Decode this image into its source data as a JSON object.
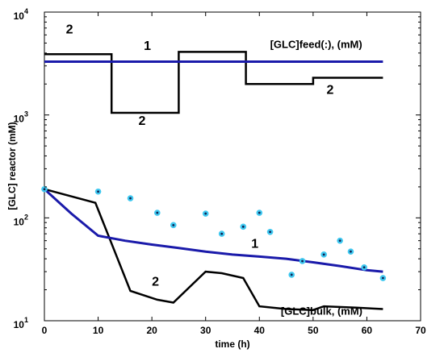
{
  "chart_data": {
    "type": "line",
    "xlabel": "time (h)",
    "ylabel": "[GLC] reactor (mM)",
    "xlim": [
      0,
      70
    ],
    "ylim": [
      10,
      10000
    ],
    "yscale": "log",
    "xticks": [
      0,
      10,
      20,
      30,
      40,
      50,
      60,
      70
    ],
    "ytick_labels": [
      {
        "base": "10",
        "exp": "1",
        "value": 10
      },
      {
        "base": "10",
        "exp": "2",
        "value": 100
      },
      {
        "base": "10",
        "exp": "3",
        "value": 1000
      },
      {
        "base": "10",
        "exp": "4",
        "value": 10000
      }
    ],
    "grid": false,
    "colors": {
      "series1": "#1a1aaa",
      "series2": "#000000",
      "points_fill": "#3fc8f0",
      "points_core": "#102050"
    },
    "feed1": {
      "x": [
        0,
        63
      ],
      "y": [
        3300,
        3300
      ]
    },
    "feed2": {
      "x": [
        0,
        12.5,
        12.5,
        25,
        25,
        37.5,
        37.5,
        50,
        50,
        63
      ],
      "y": [
        3900,
        3900,
        1050,
        1050,
        4100,
        4100,
        2000,
        2000,
        2300,
        2300
      ]
    },
    "bulk1": {
      "x": [
        0,
        5,
        10,
        15,
        20,
        25,
        30,
        35,
        40,
        45,
        50,
        55,
        60,
        63
      ],
      "y": [
        190,
        110,
        67,
        60,
        55,
        51,
        47,
        44,
        42,
        40,
        37,
        34,
        31,
        30
      ]
    },
    "bulk2": {
      "x": [
        0,
        9.5,
        16,
        21,
        24,
        30,
        33,
        37,
        40,
        45,
        50,
        52,
        58,
        63
      ],
      "y": [
        190,
        140,
        19.5,
        16,
        15,
        30,
        29,
        26,
        13.8,
        13,
        12.7,
        13.8,
        13.4,
        13.0
      ]
    },
    "measured": {
      "x": [
        0,
        10,
        16,
        21,
        24,
        30,
        33,
        37,
        40,
        42,
        46,
        48,
        52,
        55,
        57,
        59.5,
        63
      ],
      "y": [
        190,
        180,
        155,
        112,
        85,
        110,
        70,
        82,
        112,
        73,
        28,
        38,
        44,
        60,
        47,
        33,
        26
      ]
    },
    "annotations": [
      {
        "text": "2",
        "x": 4,
        "y": 6200,
        "size": "big"
      },
      {
        "text": "1",
        "x": 18.5,
        "y": 4300,
        "size": "big"
      },
      {
        "text": "[GLC]feed(:), (mM)",
        "x": 42,
        "y": 4500,
        "size": "normal"
      },
      {
        "text": "2",
        "x": 17.5,
        "y": 800,
        "size": "big"
      },
      {
        "text": "2",
        "x": 52.5,
        "y": 1600,
        "size": "big"
      },
      {
        "text": "1",
        "x": 38.5,
        "y": 51,
        "size": "big"
      },
      {
        "text": "2",
        "x": 20,
        "y": 22,
        "size": "big"
      },
      {
        "text": "[GLC]bulk, (mM)",
        "x": 44,
        "y": 11.5,
        "size": "normal"
      }
    ]
  }
}
